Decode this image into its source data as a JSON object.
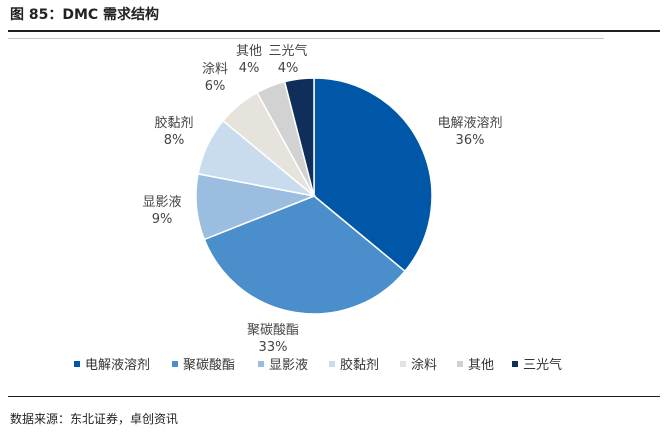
{
  "figure": {
    "title": "图 85：DMC 需求结构",
    "source": "数据来源：东北证券，卓创资讯"
  },
  "chart_data": {
    "type": "pie",
    "title": "",
    "categories": [
      "电解液溶剂",
      "聚碳酸酯",
      "显影液",
      "胶黏剂",
      "涂料",
      "其他",
      "三光气"
    ],
    "values": [
      36,
      33,
      9,
      8,
      6,
      4,
      4
    ],
    "value_labels": [
      "36%",
      "33%",
      "9%",
      "8%",
      "6%",
      "4%",
      "4%"
    ],
    "colors": [
      "#0057A8",
      "#4A8FCB",
      "#9BBDE0",
      "#C9DCEE",
      "#E6E3DC",
      "#D2D2D2",
      "#0F2F5A"
    ],
    "legend": "bottom",
    "start_angle_deg": 0,
    "direction": "clockwise"
  }
}
